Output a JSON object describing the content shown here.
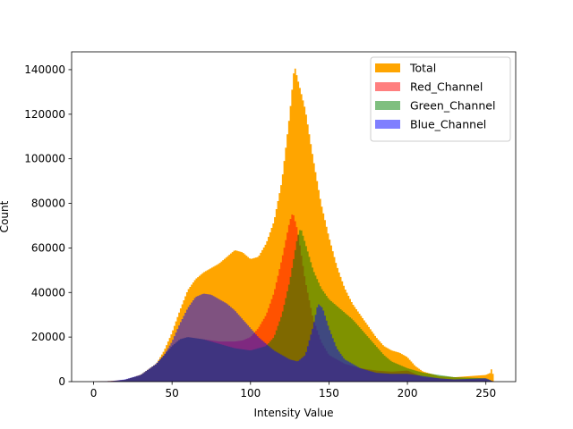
{
  "chart_data": {
    "type": "area",
    "title": "",
    "xlabel": "Intensity Value",
    "ylabel": "Count",
    "xlim": [
      -14,
      269
    ],
    "ylim": [
      0,
      148000
    ],
    "xticks": [
      0,
      50,
      100,
      150,
      200,
      250
    ],
    "yticks": [
      0,
      20000,
      40000,
      60000,
      80000,
      100000,
      120000,
      140000
    ],
    "grid": false,
    "legend_position": "top-right",
    "histogram_style": "overlaid histograms, one bar per intensity value 0-255",
    "series": [
      {
        "name": "Total",
        "color": "#ffa500",
        "opacity": 1.0,
        "points": [
          [
            0,
            0
          ],
          [
            12,
            300
          ],
          [
            20,
            800
          ],
          [
            30,
            3000
          ],
          [
            40,
            8000
          ],
          [
            45,
            14000
          ],
          [
            50,
            22000
          ],
          [
            55,
            32000
          ],
          [
            60,
            41000
          ],
          [
            65,
            46000
          ],
          [
            70,
            49000
          ],
          [
            75,
            51000
          ],
          [
            80,
            53000
          ],
          [
            85,
            56000
          ],
          [
            90,
            59000
          ],
          [
            95,
            58000
          ],
          [
            100,
            55000
          ],
          [
            105,
            56000
          ],
          [
            110,
            62000
          ],
          [
            115,
            72000
          ],
          [
            120,
            90000
          ],
          [
            125,
            120000
          ],
          [
            128,
            142000
          ],
          [
            130,
            136000
          ],
          [
            135,
            122000
          ],
          [
            140,
            100000
          ],
          [
            145,
            80000
          ],
          [
            150,
            65000
          ],
          [
            155,
            52000
          ],
          [
            160,
            42000
          ],
          [
            165,
            35000
          ],
          [
            170,
            30000
          ],
          [
            175,
            25000
          ],
          [
            180,
            20000
          ],
          [
            185,
            16000
          ],
          [
            190,
            14000
          ],
          [
            195,
            13000
          ],
          [
            200,
            11000
          ],
          [
            205,
            7000
          ],
          [
            210,
            4500
          ],
          [
            215,
            3500
          ],
          [
            220,
            2500
          ],
          [
            230,
            2000
          ],
          [
            240,
            2500
          ],
          [
            250,
            3000
          ],
          [
            253,
            4000
          ],
          [
            254,
            7000
          ],
          [
            255,
            0
          ]
        ]
      },
      {
        "name": "Red_Channel",
        "color": "#ff0000",
        "opacity": 0.5,
        "points": [
          [
            0,
            0
          ],
          [
            12,
            300
          ],
          [
            20,
            800
          ],
          [
            30,
            3000
          ],
          [
            40,
            8000
          ],
          [
            45,
            12000
          ],
          [
            50,
            16000
          ],
          [
            55,
            19000
          ],
          [
            60,
            20000
          ],
          [
            70,
            19000
          ],
          [
            80,
            18000
          ],
          [
            90,
            18000
          ],
          [
            95,
            18500
          ],
          [
            100,
            20000
          ],
          [
            105,
            24000
          ],
          [
            110,
            30000
          ],
          [
            115,
            40000
          ],
          [
            120,
            55000
          ],
          [
            125,
            72000
          ],
          [
            127,
            76000
          ],
          [
            130,
            68000
          ],
          [
            135,
            45000
          ],
          [
            140,
            28000
          ],
          [
            145,
            18000
          ],
          [
            150,
            12000
          ],
          [
            160,
            8000
          ],
          [
            170,
            6000
          ],
          [
            180,
            5000
          ],
          [
            190,
            4500
          ],
          [
            200,
            5000
          ],
          [
            205,
            3500
          ],
          [
            210,
            2000
          ],
          [
            220,
            1500
          ],
          [
            230,
            1000
          ],
          [
            250,
            1000
          ],
          [
            255,
            0
          ]
        ]
      },
      {
        "name": "Green_Channel",
        "color": "#008000",
        "opacity": 0.5,
        "points": [
          [
            0,
            0
          ],
          [
            12,
            200
          ],
          [
            20,
            800
          ],
          [
            30,
            3000
          ],
          [
            40,
            8000
          ],
          [
            45,
            12000
          ],
          [
            50,
            16000
          ],
          [
            55,
            19000
          ],
          [
            60,
            20000
          ],
          [
            70,
            19000
          ],
          [
            80,
            17000
          ],
          [
            90,
            15000
          ],
          [
            100,
            14000
          ],
          [
            110,
            16000
          ],
          [
            115,
            20000
          ],
          [
            120,
            30000
          ],
          [
            125,
            45000
          ],
          [
            130,
            65000
          ],
          [
            132,
            69000
          ],
          [
            135,
            62000
          ],
          [
            140,
            50000
          ],
          [
            145,
            42000
          ],
          [
            150,
            37000
          ],
          [
            155,
            34000
          ],
          [
            160,
            31000
          ],
          [
            165,
            28000
          ],
          [
            170,
            24000
          ],
          [
            175,
            20000
          ],
          [
            180,
            16000
          ],
          [
            185,
            12000
          ],
          [
            190,
            9000
          ],
          [
            200,
            6000
          ],
          [
            210,
            4000
          ],
          [
            220,
            3000
          ],
          [
            230,
            2000
          ],
          [
            250,
            1500
          ],
          [
            255,
            0
          ]
        ]
      },
      {
        "name": "Blue_Channel",
        "color": "#0000ff",
        "opacity": 0.5,
        "points": [
          [
            0,
            0
          ],
          [
            12,
            300
          ],
          [
            20,
            1000
          ],
          [
            30,
            3000
          ],
          [
            40,
            8000
          ],
          [
            45,
            12000
          ],
          [
            50,
            18000
          ],
          [
            55,
            26000
          ],
          [
            60,
            33000
          ],
          [
            65,
            38000
          ],
          [
            70,
            39500
          ],
          [
            75,
            39000
          ],
          [
            80,
            37000
          ],
          [
            85,
            35000
          ],
          [
            90,
            32000
          ],
          [
            95,
            28000
          ],
          [
            100,
            24000
          ],
          [
            105,
            20000
          ],
          [
            110,
            17000
          ],
          [
            115,
            14000
          ],
          [
            120,
            12000
          ],
          [
            125,
            10000
          ],
          [
            130,
            9000
          ],
          [
            135,
            12000
          ],
          [
            140,
            25000
          ],
          [
            143,
            35000
          ],
          [
            146,
            33000
          ],
          [
            150,
            24000
          ],
          [
            155,
            15000
          ],
          [
            160,
            10000
          ],
          [
            170,
            6000
          ],
          [
            180,
            4000
          ],
          [
            190,
            3500
          ],
          [
            200,
            3500
          ],
          [
            210,
            2500
          ],
          [
            220,
            1500
          ],
          [
            230,
            1000
          ],
          [
            250,
            1500
          ],
          [
            255,
            0
          ]
        ]
      }
    ]
  }
}
